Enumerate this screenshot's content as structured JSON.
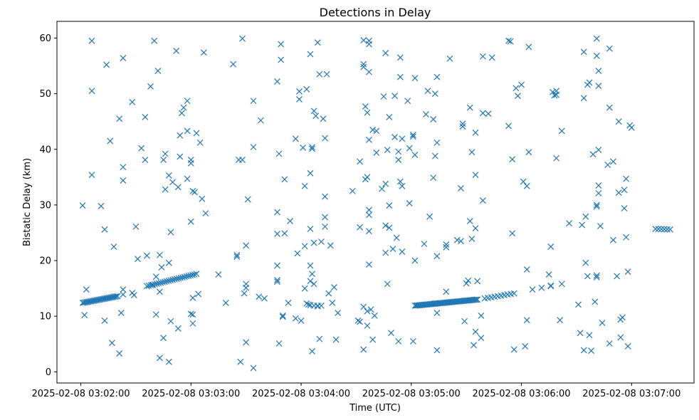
{
  "chart_data": {
    "type": "scatter",
    "title": "Detections in Delay",
    "xlabel": "Time (UTC)",
    "ylabel": "Bistatic Delay (km)",
    "marker": "x",
    "color": "#1f77b4",
    "x_unit": "seconds since 2025-02-08 03:02:00 UTC",
    "xlim": [
      -13,
      334
    ],
    "ylim": [
      -2,
      63
    ],
    "grid": false,
    "legend": "none",
    "x_ticks": [
      {
        "value": 0,
        "label": "2025-02-08 03:02:00"
      },
      {
        "value": 60,
        "label": "2025-02-08 03:03:00"
      },
      {
        "value": 120,
        "label": "2025-02-08 03:04:00"
      },
      {
        "value": 180,
        "label": "2025-02-08 03:05:00"
      },
      {
        "value": 240,
        "label": "2025-02-08 03:06:00"
      },
      {
        "value": 300,
        "label": "2025-02-08 03:07:00"
      }
    ],
    "y_ticks": [
      0,
      10,
      20,
      30,
      40,
      50,
      60
    ],
    "tracks": [
      {
        "name": "track-1",
        "x_start": 1,
        "y_start": 12.4,
        "x_end": 20,
        "y_end": 13.6,
        "count": 26
      },
      {
        "name": "track-2",
        "x_start": 36,
        "y_start": 15.4,
        "x_end": 63,
        "y_end": 17.6,
        "count": 26
      },
      {
        "name": "track-3",
        "x_start": 182,
        "y_start": 11.9,
        "x_end": 216,
        "y_end": 13.0,
        "count": 52
      },
      {
        "name": "track-4",
        "x_start": 220,
        "y_start": 13.2,
        "x_end": 236,
        "y_end": 14.1,
        "count": 10
      },
      {
        "name": "track-5",
        "x_start": 313,
        "y_start": 25.7,
        "x_end": 321,
        "y_end": 25.6,
        "count": 6
      }
    ],
    "clutter_points": [
      [
        1,
        29.9
      ],
      [
        2,
        10.2
      ],
      [
        3,
        14.8
      ],
      [
        6,
        59.5
      ],
      [
        6,
        50.5
      ],
      [
        6,
        35.4
      ],
      [
        11,
        29.8
      ],
      [
        13,
        9.2
      ],
      [
        13,
        25.6
      ],
      [
        14,
        55.2
      ],
      [
        16,
        41.5
      ],
      [
        17,
        5.2
      ],
      [
        18,
        22.5
      ],
      [
        21,
        45.5
      ],
      [
        21,
        3.3
      ],
      [
        22,
        10.6
      ],
      [
        23,
        14.8
      ],
      [
        23,
        13.9
      ],
      [
        23,
        36.8
      ],
      [
        23,
        34.4
      ],
      [
        23,
        56.4
      ],
      [
        28,
        48.5
      ],
      [
        28,
        14.2
      ],
      [
        29,
        13.8
      ],
      [
        30,
        26.1
      ],
      [
        31,
        20.3
      ],
      [
        33,
        40.2
      ],
      [
        35,
        38.1
      ],
      [
        35,
        45.8
      ],
      [
        36,
        20.9
      ],
      [
        38,
        51.3
      ],
      [
        39,
        15.6
      ],
      [
        40,
        59.5
      ],
      [
        41,
        10.3
      ],
      [
        41,
        17.1
      ],
      [
        42,
        54.1
      ],
      [
        43,
        2.5
      ],
      [
        43,
        14.4
      ],
      [
        43,
        21.0
      ],
      [
        44,
        18.8
      ],
      [
        45,
        6.1
      ],
      [
        45,
        38.1
      ],
      [
        46,
        39.2
      ],
      [
        46,
        32.8
      ],
      [
        48,
        1.8
      ],
      [
        48,
        19.6
      ],
      [
        48,
        35.3
      ],
      [
        49,
        9.1
      ],
      [
        49,
        25.1
      ],
      [
        50,
        34.1
      ],
      [
        52,
        57.7
      ],
      [
        53,
        7.8
      ],
      [
        53,
        33.2
      ],
      [
        54,
        42.5
      ],
      [
        54,
        38.7
      ],
      [
        55,
        46.5
      ],
      [
        56,
        47.5
      ],
      [
        58,
        48.7
      ],
      [
        58,
        43.3
      ],
      [
        58,
        34.7
      ],
      [
        60,
        38.1
      ],
      [
        60,
        37.5
      ],
      [
        60,
        10.4
      ],
      [
        60,
        27.0
      ],
      [
        61,
        8.7
      ],
      [
        61,
        10.3
      ],
      [
        61,
        32.5
      ],
      [
        61,
        13.3
      ],
      [
        62,
        32.3
      ],
      [
        63,
        42.9
      ],
      [
        64,
        14.0
      ],
      [
        65,
        41.2
      ],
      [
        66,
        31.1
      ],
      [
        67,
        57.4
      ],
      [
        68,
        28.5
      ],
      [
        75,
        17.5
      ],
      [
        79,
        12.4
      ],
      [
        83,
        55.3
      ],
      [
        85,
        21.0
      ],
      [
        85,
        20.7
      ],
      [
        86,
        38.1
      ],
      [
        87,
        1.8
      ],
      [
        88,
        38.1
      ],
      [
        88,
        59.9
      ],
      [
        89,
        14.1
      ],
      [
        90,
        5.3
      ],
      [
        90,
        22.7
      ],
      [
        90,
        15.1
      ],
      [
        90,
        15.8
      ],
      [
        91,
        31.0
      ],
      [
        94,
        0.7
      ],
      [
        94,
        48.7
      ],
      [
        94,
        40.4
      ],
      [
        97,
        13.5
      ],
      [
        98,
        45.2
      ],
      [
        100,
        13.2
      ],
      [
        107,
        28.7
      ],
      [
        107,
        24.8
      ],
      [
        107,
        19.1
      ],
      [
        107,
        16.5
      ],
      [
        107,
        16.2
      ],
      [
        107,
        52.2
      ],
      [
        108,
        39.2
      ],
      [
        108,
        5.1
      ],
      [
        109,
        58.9
      ],
      [
        109,
        56.1
      ],
      [
        110,
        10.1
      ],
      [
        110,
        9.9
      ],
      [
        111,
        34.6
      ],
      [
        111,
        24.9
      ],
      [
        113,
        12.4
      ],
      [
        114,
        27.1
      ],
      [
        117,
        41.9
      ],
      [
        117,
        9.6
      ],
      [
        118,
        21.3
      ],
      [
        119,
        49.0
      ],
      [
        119,
        50.4
      ],
      [
        120,
        9.2
      ],
      [
        121,
        40.3
      ],
      [
        122,
        33.4
      ],
      [
        122,
        15.0
      ],
      [
        122,
        22.6
      ],
      [
        123,
        50.8
      ],
      [
        123,
        12.3
      ],
      [
        124,
        12.1
      ],
      [
        125,
        57.1
      ],
      [
        125,
        35.7
      ],
      [
        125,
        25.7
      ],
      [
        125,
        16.3
      ],
      [
        125,
        19.1
      ],
      [
        125,
        12.0
      ],
      [
        126,
        17.6
      ],
      [
        126,
        40.1
      ],
      [
        126,
        40.4
      ],
      [
        126,
        3.7
      ],
      [
        127,
        46.9
      ],
      [
        127,
        11.9
      ],
      [
        127,
        15.8
      ],
      [
        127,
        23.2
      ],
      [
        128,
        46.0
      ],
      [
        129,
        11.8
      ],
      [
        129,
        11.9
      ],
      [
        129,
        59.2
      ],
      [
        130,
        53.5
      ],
      [
        130,
        5.9
      ],
      [
        131,
        23.4
      ],
      [
        131,
        11.9
      ],
      [
        132,
        45.5
      ],
      [
        133,
        42.0
      ],
      [
        133,
        31.5
      ],
      [
        133,
        27.8
      ],
      [
        133,
        26.1
      ],
      [
        134,
        53.5
      ],
      [
        135,
        14.1
      ],
      [
        136,
        22.7
      ],
      [
        137,
        12.4
      ],
      [
        138,
        15.2
      ],
      [
        139,
        5.8
      ],
      [
        140,
        10.6
      ],
      [
        148,
        32.5
      ],
      [
        151,
        9.2
      ],
      [
        152,
        9.0
      ],
      [
        152,
        26.0
      ],
      [
        152,
        37.8
      ],
      [
        154,
        55.3
      ],
      [
        154,
        59.6
      ],
      [
        154,
        54.8
      ],
      [
        154,
        4.0
      ],
      [
        154,
        11.7
      ],
      [
        155,
        47.7
      ],
      [
        155,
        34.6
      ],
      [
        156,
        46.6
      ],
      [
        156,
        35.0
      ],
      [
        156,
        10.9
      ],
      [
        156,
        8.3
      ],
      [
        157,
        58.9
      ],
      [
        157,
        59.5
      ],
      [
        157,
        53.9
      ],
      [
        157,
        41.7
      ],
      [
        157,
        29.1
      ],
      [
        157,
        28.2
      ],
      [
        157,
        25.3
      ],
      [
        157,
        19.3
      ],
      [
        158,
        11.2
      ],
      [
        159,
        43.5
      ],
      [
        159,
        5.8
      ],
      [
        160,
        10.1
      ],
      [
        161,
        43.3
      ],
      [
        161,
        39.4
      ],
      [
        164,
        32.9
      ],
      [
        165,
        49.5
      ],
      [
        166,
        57.3
      ],
      [
        166,
        33.8
      ],
      [
        166,
        21.4
      ],
      [
        166,
        26.3
      ],
      [
        167,
        39.9
      ],
      [
        167,
        15.8
      ],
      [
        168,
        45.8
      ],
      [
        168,
        25.9
      ],
      [
        168,
        29.9
      ],
      [
        169,
        7.0
      ],
      [
        170,
        22.1
      ],
      [
        171,
        42.2
      ],
      [
        171,
        49.6
      ],
      [
        172,
        24.1
      ],
      [
        173,
        38.1
      ],
      [
        173,
        39.6
      ],
      [
        173,
        5.5
      ],
      [
        174,
        56.5
      ],
      [
        174,
        53.0
      ],
      [
        174,
        34.2
      ],
      [
        175,
        33.4
      ],
      [
        175,
        21.6
      ],
      [
        175,
        41.9
      ],
      [
        178,
        48.7
      ],
      [
        179,
        40.2
      ],
      [
        179,
        30.3
      ],
      [
        181,
        5.5
      ],
      [
        181,
        42.6
      ],
      [
        181,
        42.3
      ],
      [
        182,
        52.8
      ],
      [
        182,
        39.0
      ],
      [
        182,
        20.0
      ],
      [
        187,
        23.0
      ],
      [
        188,
        46.3
      ],
      [
        189,
        50.5
      ],
      [
        190,
        27.9
      ],
      [
        192,
        45.4
      ],
      [
        192,
        34.9
      ],
      [
        193,
        50.0
      ],
      [
        193,
        38.8
      ],
      [
        193,
        12.3
      ],
      [
        194,
        53.0
      ],
      [
        194,
        41.2
      ],
      [
        194,
        20.8
      ],
      [
        194,
        10.6
      ],
      [
        194,
        3.9
      ],
      [
        199,
        22.9
      ],
      [
        199,
        22.4
      ],
      [
        199,
        14.4
      ],
      [
        201,
        56.3
      ],
      [
        205,
        23.7
      ],
      [
        207,
        33.0
      ],
      [
        207,
        23.5
      ],
      [
        208,
        44.6
      ],
      [
        208,
        44.1
      ],
      [
        209,
        9.1
      ],
      [
        210,
        15.9
      ],
      [
        211,
        16.4
      ],
      [
        212,
        47.5
      ],
      [
        212,
        27.1
      ],
      [
        213,
        39.5
      ],
      [
        213,
        23.9
      ],
      [
        214,
        4.8
      ],
      [
        215,
        43.0
      ],
      [
        215,
        35.4
      ],
      [
        215,
        25.8
      ],
      [
        215,
        7.2
      ],
      [
        216,
        16.3
      ],
      [
        218,
        6.1
      ],
      [
        218,
        10.1
      ],
      [
        219,
        30.8
      ],
      [
        219,
        46.5
      ],
      [
        219,
        56.7
      ],
      [
        222,
        46.4
      ],
      [
        224,
        56.5
      ],
      [
        233,
        44.2
      ],
      [
        233,
        59.5
      ],
      [
        234,
        59.4
      ],
      [
        235,
        38.2
      ],
      [
        235,
        24.9
      ],
      [
        236,
        4.0
      ],
      [
        237,
        51.0
      ],
      [
        238,
        49.6
      ],
      [
        240,
        51.6
      ],
      [
        241,
        34.2
      ],
      [
        242,
        4.6
      ],
      [
        243,
        9.3
      ],
      [
        243,
        18.4
      ],
      [
        243,
        33.4
      ],
      [
        244,
        58.4
      ],
      [
        244,
        39.5
      ],
      [
        246,
        14.8
      ],
      [
        251,
        15.1
      ],
      [
        255,
        17.5
      ],
      [
        256,
        22.5
      ],
      [
        256,
        15.5
      ],
      [
        256,
        15.4
      ],
      [
        257,
        50.3
      ],
      [
        258,
        49.7
      ],
      [
        259,
        50.5
      ],
      [
        259,
        49.8
      ],
      [
        259,
        38.4
      ],
      [
        261,
        9.3
      ],
      [
        262,
        43.3
      ],
      [
        262,
        15.8
      ],
      [
        266,
        26.7
      ],
      [
        271,
        12.1
      ],
      [
        272,
        7.0
      ],
      [
        273,
        26.4
      ],
      [
        274,
        57.5
      ],
      [
        274,
        49.2
      ],
      [
        274,
        3.9
      ],
      [
        275,
        27.9
      ],
      [
        275,
        19.6
      ],
      [
        276,
        51.6
      ],
      [
        276,
        17.2
      ],
      [
        277,
        52.0
      ],
      [
        277,
        6.6
      ],
      [
        278,
        3.8
      ],
      [
        279,
        39.1
      ],
      [
        280,
        12.6
      ],
      [
        281,
        59.9
      ],
      [
        281,
        56.8
      ],
      [
        281,
        30.0
      ],
      [
        281,
        29.7
      ],
      [
        281,
        17.3
      ],
      [
        281,
        17.0
      ],
      [
        282,
        54.1
      ],
      [
        282,
        51.4
      ],
      [
        282,
        39.9
      ],
      [
        282,
        33.5
      ],
      [
        282,
        32.1
      ],
      [
        283,
        26.2
      ],
      [
        284,
        8.8
      ],
      [
        287,
        37.2
      ],
      [
        288,
        58.1
      ],
      [
        288,
        47.5
      ],
      [
        288,
        5.1
      ],
      [
        290,
        37.8
      ],
      [
        290,
        23.7
      ],
      [
        292,
        17.2
      ],
      [
        293,
        45.0
      ],
      [
        293,
        32.2
      ],
      [
        294,
        6.2
      ],
      [
        294,
        9.4
      ],
      [
        295,
        9.8
      ],
      [
        296,
        29.4
      ],
      [
        296,
        32.7
      ],
      [
        297,
        34.7
      ],
      [
        297,
        24.2
      ],
      [
        298,
        18.0
      ],
      [
        298,
        4.6
      ],
      [
        299,
        44.3
      ],
      [
        300,
        43.9
      ]
    ]
  }
}
